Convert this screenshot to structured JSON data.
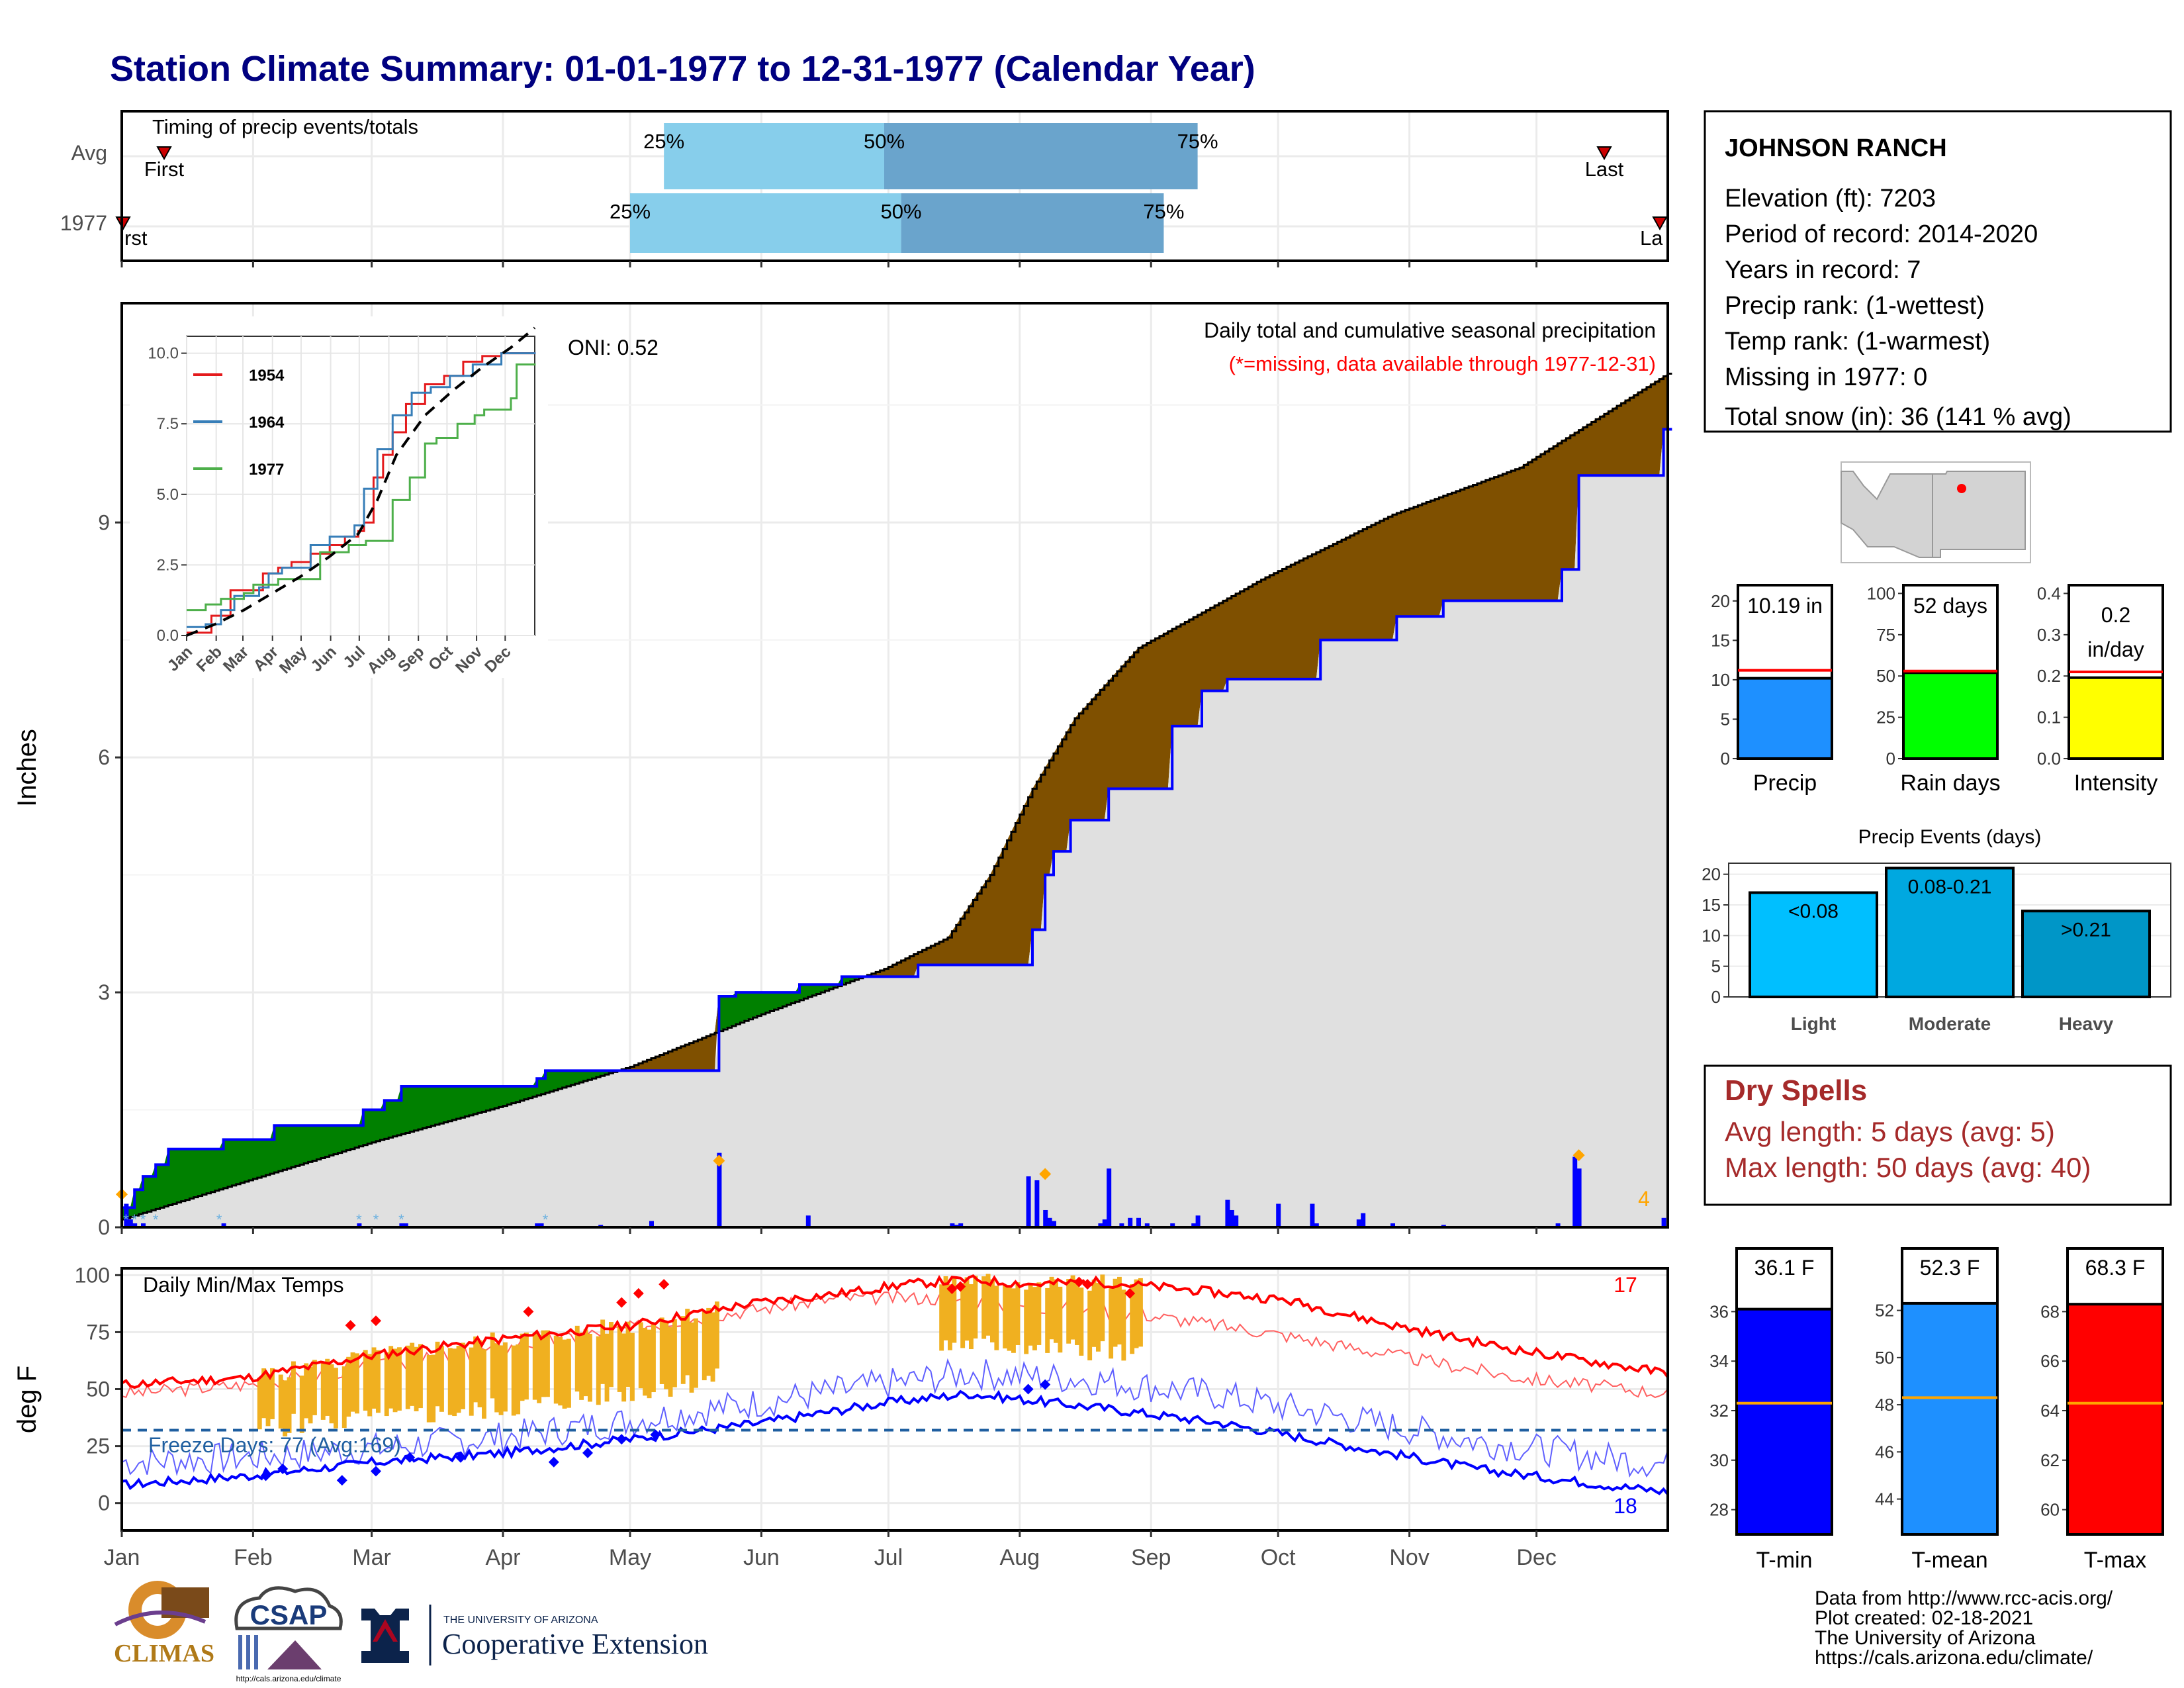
{
  "title": "Station Climate Summary: 01-01-1977 to 12-31-1977 (Calendar Year)",
  "colors": {
    "title": "#000080",
    "gain": "#008000",
    "loss": "#7f5000",
    "avg_area": "#e0e0e0",
    "cum_line": "#0000ff",
    "daily_bar": "#0000ff",
    "diamond": "#ffa500",
    "tmax": "#ff0000",
    "tmin": "#0000ff",
    "warm_bar": "#f0b020",
    "freeze_line": "#1f5fa0",
    "q25": "#87ceeb",
    "q50": "#6aa4cc",
    "dry_text": "#a52a2a"
  },
  "timing": {
    "label": "Timing of precip events/totals",
    "rows": [
      "Avg",
      "1977"
    ],
    "avg": {
      "first_day": 10,
      "last_day": 350,
      "q25": 128,
      "q50": 180,
      "q75": 254
    },
    "y1977": {
      "first_day": 0,
      "last_day": 365,
      "q25": 120,
      "q50": 184,
      "q75": 246
    },
    "first_label": "First",
    "last_label": "Last",
    "clipped_first_label": "rst",
    "clipped_last_label": "La",
    "pct_labels": [
      "25%",
      "50%",
      "75%"
    ]
  },
  "precip": {
    "ylabel": "Inches",
    "yticks": [
      "0",
      "3",
      "6",
      "9"
    ],
    "header": "Daily total and cumulative seasonal precipitation",
    "missing_note": "(*=missing, data available through 1977-12-31)",
    "oni": "ONI: 0.52",
    "count_label": "4",
    "ylim": [
      0,
      11.8
    ],
    "cumulative_1977": [
      [
        0,
        0.25
      ],
      [
        3,
        0.48
      ],
      [
        5,
        0.65
      ],
      [
        8,
        0.8
      ],
      [
        11,
        1.0
      ],
      [
        23,
        1.0
      ],
      [
        24,
        1.12
      ],
      [
        36,
        1.3
      ],
      [
        56,
        1.3
      ],
      [
        57,
        1.5
      ],
      [
        62,
        1.62
      ],
      [
        66,
        1.8
      ],
      [
        97,
        1.8
      ],
      [
        98,
        1.9
      ],
      [
        100,
        2.0
      ],
      [
        140,
        2.0
      ],
      [
        141,
        2.95
      ],
      [
        145,
        3.0
      ],
      [
        159,
        3.0
      ],
      [
        160,
        3.1
      ],
      [
        170,
        3.2
      ],
      [
        187,
        3.2
      ],
      [
        188,
        3.35
      ],
      [
        213,
        3.35
      ],
      [
        215,
        3.8
      ],
      [
        218,
        4.5
      ],
      [
        220,
        4.8
      ],
      [
        224,
        5.2
      ],
      [
        231,
        5.2
      ],
      [
        233,
        5.6
      ],
      [
        247,
        5.6
      ],
      [
        248,
        6.4
      ],
      [
        255,
        6.85
      ],
      [
        261,
        7.0
      ],
      [
        282,
        7.0
      ],
      [
        283,
        7.5
      ],
      [
        300,
        7.5
      ],
      [
        301,
        7.8
      ],
      [
        311,
        7.8
      ],
      [
        312,
        8.0
      ],
      [
        339,
        8.0
      ],
      [
        340,
        8.4
      ],
      [
        344,
        9.6
      ],
      [
        362,
        9.6
      ],
      [
        364,
        10.19
      ]
    ],
    "average": [
      [
        0,
        0.1
      ],
      [
        30,
        0.6
      ],
      [
        60,
        1.1
      ],
      [
        90,
        1.55
      ],
      [
        120,
        2.05
      ],
      [
        150,
        2.7
      ],
      [
        165,
        3.0
      ],
      [
        180,
        3.3
      ],
      [
        195,
        3.7
      ],
      [
        205,
        4.5
      ],
      [
        215,
        5.6
      ],
      [
        225,
        6.5
      ],
      [
        240,
        7.4
      ],
      [
        270,
        8.3
      ],
      [
        300,
        9.1
      ],
      [
        330,
        9.7
      ],
      [
        365,
        10.9
      ]
    ],
    "daily": [
      [
        1,
        0.3
      ],
      [
        2,
        0.1
      ],
      [
        3,
        0.05
      ],
      [
        5,
        0.05
      ],
      [
        24,
        0.05
      ],
      [
        56,
        0.05
      ],
      [
        66,
        0.05
      ],
      [
        67,
        0.05
      ],
      [
        98,
        0.05
      ],
      [
        99,
        0.05
      ],
      [
        113,
        0.03
      ],
      [
        125,
        0.08
      ],
      [
        141,
        0.95
      ],
      [
        162,
        0.15
      ],
      [
        196,
        0.05
      ],
      [
        197,
        0.03
      ],
      [
        198,
        0.05
      ],
      [
        214,
        0.65
      ],
      [
        216,
        0.6
      ],
      [
        218,
        0.22
      ],
      [
        219,
        0.12
      ],
      [
        220,
        0.08
      ],
      [
        231,
        0.05
      ],
      [
        232,
        0.1
      ],
      [
        233,
        0.75
      ],
      [
        236,
        0.05
      ],
      [
        238,
        0.12
      ],
      [
        240,
        0.12
      ],
      [
        242,
        0.05
      ],
      [
        248,
        0.05
      ],
      [
        253,
        0.05
      ],
      [
        254,
        0.15
      ],
      [
        261,
        0.35
      ],
      [
        262,
        0.22
      ],
      [
        263,
        0.15
      ],
      [
        273,
        0.3
      ],
      [
        281,
        0.3
      ],
      [
        282,
        0.05
      ],
      [
        292,
        0.1
      ],
      [
        293,
        0.18
      ],
      [
        300,
        0.05
      ],
      [
        312,
        0.03
      ],
      [
        339,
        0.05
      ],
      [
        343,
        0.9
      ],
      [
        344,
        0.75
      ],
      [
        364,
        0.12
      ]
    ],
    "diamonds": [
      [
        141,
        0.85
      ],
      [
        218,
        0.68
      ],
      [
        344,
        0.92
      ],
      [
        0,
        0.42
      ]
    ],
    "missing_markers": [
      1,
      3,
      5,
      8,
      23,
      56,
      60,
      66,
      100
    ]
  },
  "inset": {
    "yticks": [
      "0.0",
      "2.5",
      "5.0",
      "7.5",
      "10.0"
    ],
    "xticks": [
      "Jan",
      "Feb",
      "Mar",
      "Apr",
      "May",
      "Jun",
      "Jul",
      "Aug",
      "Sep",
      "Oct",
      "Nov",
      "Dec"
    ],
    "ylim": [
      0,
      10.6
    ],
    "series": [
      {
        "name": "1954",
        "color": "#e41a1c",
        "values": [
          [
            0,
            0.1
          ],
          [
            20,
            0.1
          ],
          [
            25,
            0.7
          ],
          [
            40,
            0.7
          ],
          [
            45,
            1.6
          ],
          [
            70,
            1.6
          ],
          [
            80,
            2.2
          ],
          [
            95,
            2.4
          ],
          [
            110,
            2.6
          ],
          [
            130,
            2.9
          ],
          [
            150,
            3.2
          ],
          [
            165,
            3.5
          ],
          [
            175,
            3.5
          ],
          [
            180,
            3.7
          ],
          [
            185,
            4.0
          ],
          [
            195,
            5.6
          ],
          [
            205,
            6.4
          ],
          [
            215,
            7.2
          ],
          [
            230,
            8.2
          ],
          [
            250,
            8.9
          ],
          [
            270,
            9.2
          ],
          [
            290,
            9.7
          ],
          [
            310,
            9.9
          ],
          [
            330,
            10.0
          ],
          [
            365,
            10.2
          ]
        ]
      },
      {
        "name": "1964",
        "color": "#377eb8",
        "values": [
          [
            0,
            0.3
          ],
          [
            20,
            0.4
          ],
          [
            35,
            0.9
          ],
          [
            50,
            1.4
          ],
          [
            75,
            1.7
          ],
          [
            85,
            2.2
          ],
          [
            100,
            2.4
          ],
          [
            130,
            3.2
          ],
          [
            150,
            3.5
          ],
          [
            175,
            3.9
          ],
          [
            185,
            5.2
          ],
          [
            200,
            6.6
          ],
          [
            215,
            7.8
          ],
          [
            235,
            8.6
          ],
          [
            255,
            8.8
          ],
          [
            275,
            9.2
          ],
          [
            300,
            9.6
          ],
          [
            330,
            10.0
          ],
          [
            365,
            10.2
          ]
        ]
      },
      {
        "name": "1977",
        "color": "#4daf4a",
        "values": [
          [
            0,
            0.9
          ],
          [
            20,
            1.1
          ],
          [
            35,
            1.3
          ],
          [
            60,
            1.5
          ],
          [
            70,
            1.8
          ],
          [
            95,
            2.0
          ],
          [
            140,
            2.95
          ],
          [
            170,
            3.2
          ],
          [
            187,
            3.35
          ],
          [
            215,
            4.8
          ],
          [
            233,
            5.6
          ],
          [
            250,
            6.8
          ],
          [
            261,
            7.0
          ],
          [
            283,
            7.5
          ],
          [
            301,
            7.8
          ],
          [
            312,
            8.0
          ],
          [
            340,
            8.4
          ],
          [
            345,
            9.6
          ],
          [
            363,
            9.6
          ],
          [
            365,
            10.19
          ]
        ]
      }
    ],
    "average": [
      [
        0,
        0.0
      ],
      [
        30,
        0.4
      ],
      [
        60,
        0.9
      ],
      [
        90,
        1.5
      ],
      [
        120,
        2.1
      ],
      [
        150,
        2.8
      ],
      [
        180,
        3.6
      ],
      [
        200,
        4.8
      ],
      [
        220,
        6.4
      ],
      [
        250,
        7.8
      ],
      [
        280,
        8.7
      ],
      [
        310,
        9.5
      ],
      [
        340,
        10.2
      ],
      [
        365,
        10.9
      ]
    ]
  },
  "temps": {
    "label": "Daily Min/Max Temps",
    "ylabel": "deg F",
    "yticks": [
      "0",
      "25",
      "50",
      "75",
      "100"
    ],
    "ylim": [
      -12,
      103
    ],
    "freeze_label": "Freeze Days: 77 (Avg:169)",
    "freeze_temp": 32,
    "hot_count": "17",
    "cold_count": "18",
    "tmax_avg": [
      [
        0,
        48
      ],
      [
        30,
        52
      ],
      [
        60,
        60
      ],
      [
        90,
        68
      ],
      [
        120,
        77
      ],
      [
        150,
        85
      ],
      [
        170,
        90
      ],
      [
        190,
        90
      ],
      [
        210,
        87
      ],
      [
        240,
        83
      ],
      [
        270,
        75
      ],
      [
        300,
        65
      ],
      [
        330,
        55
      ],
      [
        365,
        48
      ]
    ],
    "tmin_avg": [
      [
        0,
        18
      ],
      [
        30,
        20
      ],
      [
        60,
        24
      ],
      [
        90,
        29
      ],
      [
        120,
        36
      ],
      [
        150,
        44
      ],
      [
        180,
        52
      ],
      [
        200,
        57
      ],
      [
        230,
        54
      ],
      [
        260,
        47
      ],
      [
        290,
        37
      ],
      [
        320,
        27
      ],
      [
        350,
        20
      ],
      [
        365,
        17
      ]
    ],
    "tmax_1977": [
      [
        0,
        52
      ],
      [
        30,
        55
      ],
      [
        60,
        65
      ],
      [
        90,
        72
      ],
      [
        120,
        78
      ],
      [
        150,
        88
      ],
      [
        170,
        92
      ],
      [
        185,
        96
      ],
      [
        200,
        98
      ],
      [
        215,
        96
      ],
      [
        230,
        97
      ],
      [
        250,
        94
      ],
      [
        275,
        89
      ],
      [
        300,
        78
      ],
      [
        330,
        67
      ],
      [
        365,
        57
      ]
    ],
    "tmin_1977": [
      [
        0,
        8
      ],
      [
        30,
        12
      ],
      [
        60,
        18
      ],
      [
        90,
        22
      ],
      [
        120,
        28
      ],
      [
        150,
        35
      ],
      [
        180,
        44
      ],
      [
        200,
        48
      ],
      [
        230,
        42
      ],
      [
        260,
        35
      ],
      [
        290,
        25
      ],
      [
        320,
        15
      ],
      [
        350,
        8
      ],
      [
        365,
        5
      ]
    ]
  },
  "months": [
    "Jan",
    "Feb",
    "Mar",
    "Apr",
    "May",
    "Jun",
    "Jul",
    "Aug",
    "Sep",
    "Oct",
    "Nov",
    "Dec"
  ],
  "station": {
    "name": "JOHNSON RANCH",
    "lines": [
      "Elevation (ft): 7203",
      "Period of record: 2014-2020",
      "Years in record: 7",
      "Precip rank:  (1-wettest)",
      "Temp rank:  (1-warmest)",
      "Missing in 1977: 0",
      "Total snow (in): 36 (141 % avg)"
    ]
  },
  "summary_bars": [
    {
      "label": "Precip",
      "value_label": "10.19 in",
      "value": 10.19,
      "avg": 11.2,
      "ymax": 22,
      "yticks": [
        "0",
        "5",
        "10",
        "15",
        "20"
      ],
      "color": "#1e90ff"
    },
    {
      "label": "Rain days",
      "value_label": "52 days",
      "value": 52,
      "avg": 53,
      "ymax": 105,
      "yticks": [
        "0",
        "25",
        "50",
        "75",
        "100"
      ],
      "color": "#00ff00"
    },
    {
      "label": "Intensity",
      "value_label": "0.2 in/day",
      "value_line1": "0.2",
      "value_line2": "in/day",
      "value": 0.196,
      "avg": 0.21,
      "ymax": 0.42,
      "yticks": [
        "0.0",
        "0.1",
        "0.2",
        "0.3",
        "0.4"
      ],
      "color": "#ffff00"
    }
  ],
  "events": {
    "title": "Precip Events (days)",
    "yticks": [
      "0",
      "5",
      "10",
      "15",
      "20"
    ],
    "bars": [
      {
        "category": "Light",
        "label": "<0.08",
        "value": 17,
        "color": "#00bfff"
      },
      {
        "category": "Moderate",
        "label": "0.08-0.21",
        "value": 21,
        "color": "#00a8e0"
      },
      {
        "category": "Heavy",
        "label": ">0.21",
        "value": 14,
        "color": "#0096c7"
      }
    ]
  },
  "dry_spells": {
    "title": "Dry Spells",
    "line1": "Avg length: 5 days (avg: 5)",
    "line2": "Max length: 50 days (avg: 40)"
  },
  "temp_bars": [
    {
      "label": "T-min",
      "value_label": "36.1 F",
      "value": 36.1,
      "avg": 32.3,
      "ymin": 27,
      "ymax": 37,
      "yticks": [
        "28",
        "30",
        "32",
        "34",
        "36"
      ],
      "color": "#0000ff"
    },
    {
      "label": "T-mean",
      "value_label": "52.3 F",
      "value": 52.3,
      "avg": 48.3,
      "ymin": 42.5,
      "ymax": 53,
      "yticks": [
        "44",
        "46",
        "48",
        "50",
        "52"
      ],
      "color": "#1e90ff"
    },
    {
      "label": "T-max",
      "value_label": "68.3 F",
      "value": 68.3,
      "avg": 64.3,
      "ymin": 59,
      "ymax": 69,
      "yticks": [
        "60",
        "62",
        "64",
        "66",
        "68"
      ],
      "color": "#ff0000"
    }
  ],
  "credits": [
    "Data from http://www.rcc-acis.org/",
    "Plot created: 02-18-2021",
    "The University of Arizona",
    "https://cals.arizona.edu/climate/"
  ],
  "logos": {
    "climas": "CLIMAS",
    "csap": "CSAP",
    "csap_url": "http://cals.arizona.edu/climate",
    "ua_small": "THE UNIVERSITY OF ARIZONA",
    "ua_big": "Cooperative Extension"
  }
}
